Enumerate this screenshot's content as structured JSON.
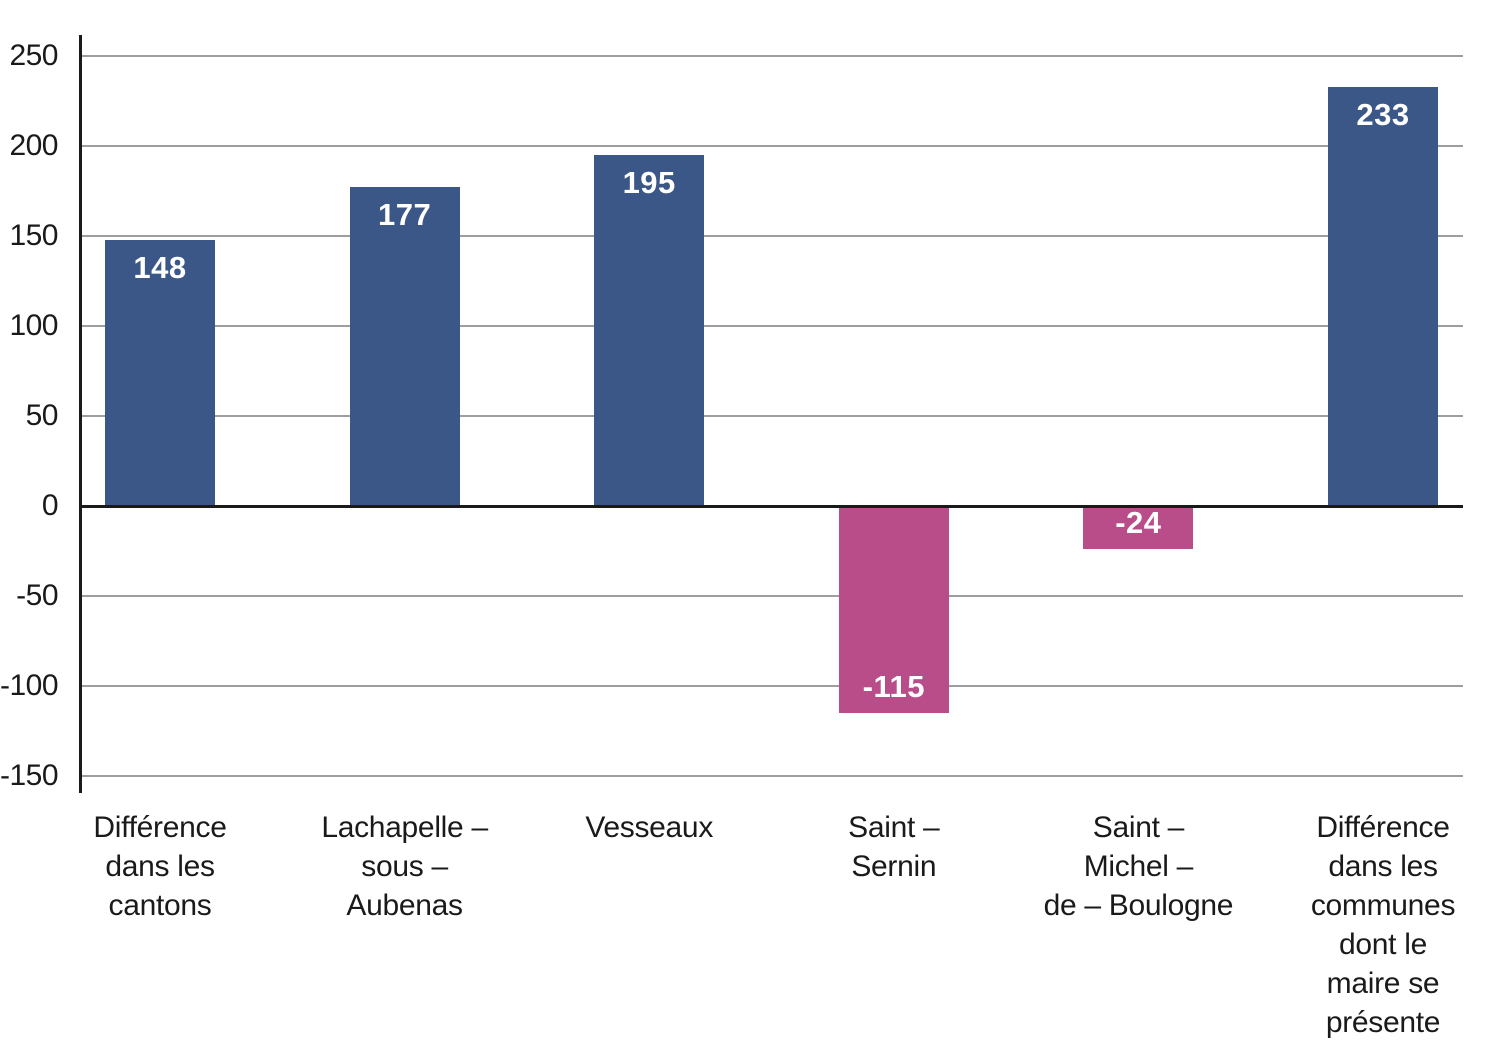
{
  "chart_data": {
    "type": "bar",
    "title": "",
    "xlabel": "",
    "ylabel": "",
    "legend": "none",
    "grid": true,
    "categories": [
      "Différence\ndans les\ncantons",
      "Lachapelle –\nsous –\nAubenas",
      "Vesseaux",
      "Saint –\nSernin",
      "Saint –\nMichel –\nde – Boulogne",
      "Différence\ndans les\ncommunes\ndont le\nmaire se\nprésente"
    ],
    "values": [
      148,
      177,
      195,
      -115,
      -24,
      233
    ],
    "data_labels": [
      "148",
      "177",
      "195",
      "-115",
      "-24",
      "233"
    ],
    "ylim": [
      -150,
      250
    ],
    "ytick_step": 50,
    "yticks": [
      250,
      200,
      150,
      100,
      50,
      0,
      -50,
      -100,
      -150
    ],
    "colors": {
      "positive_bar": "#3a5788",
      "negative_bar": "#b94d89",
      "gridline": "#9e9e9e",
      "zero_axis": "#1a1a1a",
      "axis_line": "#1a1a1a",
      "tick_text": "#1a1a1a",
      "category_text": "#1a1a1a",
      "value_label_text": "#ffffff"
    }
  }
}
